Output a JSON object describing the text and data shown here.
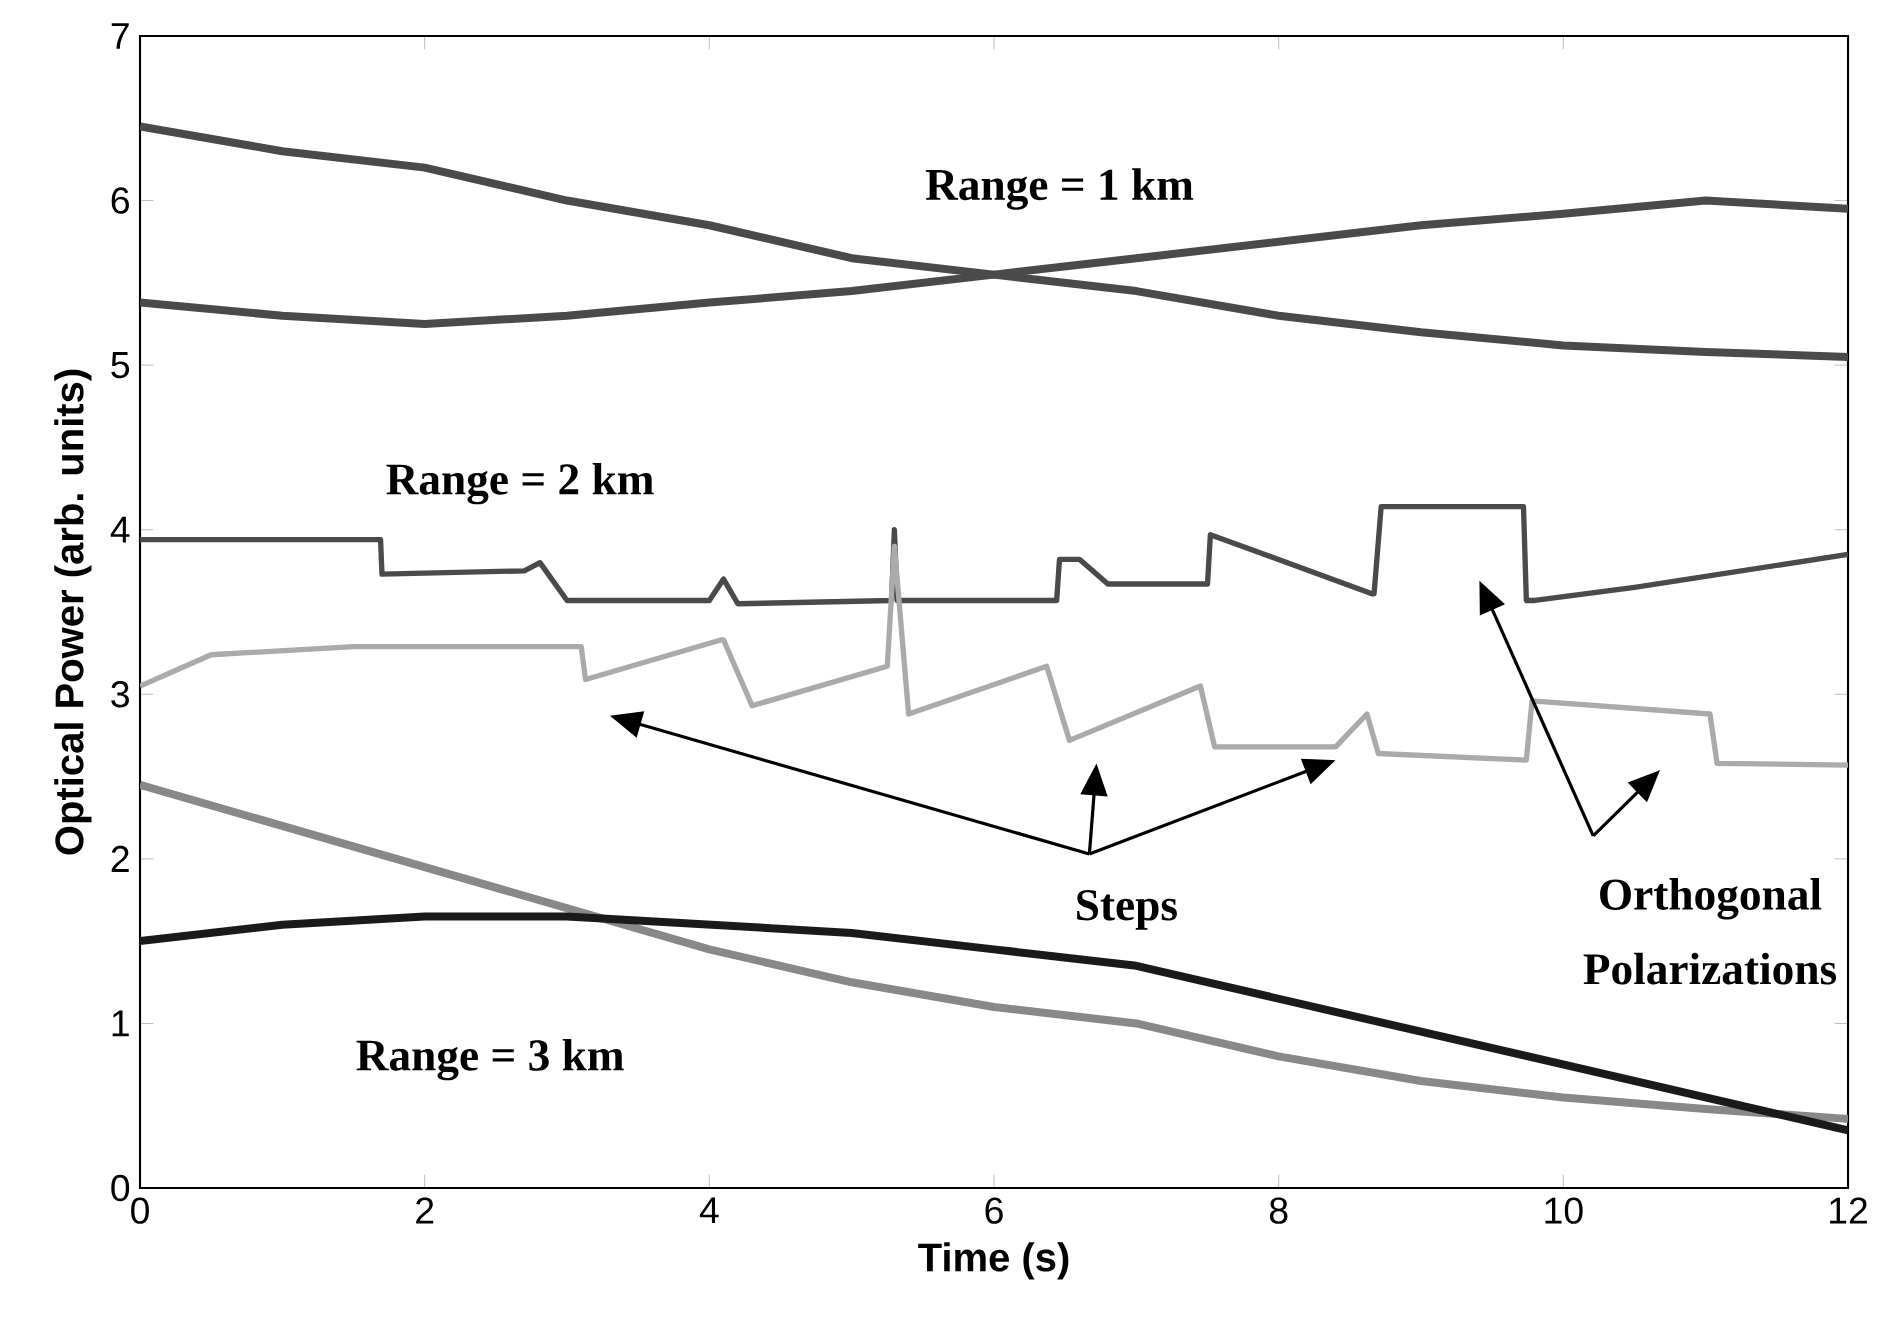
{
  "chart_data": {
    "type": "line",
    "xlabel": "Time (s)",
    "ylabel": "Optical Power (arb. units)",
    "xlim": [
      0,
      12
    ],
    "ylim": [
      0,
      7
    ],
    "xticks": [
      0,
      2,
      4,
      6,
      8,
      10,
      12
    ],
    "yticks": [
      0,
      1,
      2,
      3,
      4,
      5,
      6,
      7
    ],
    "annotations": [
      "Range = 1 km",
      "Range = 2 km",
      "Range = 3 km",
      "Steps",
      "Orthogonal Polarizations"
    ],
    "series": [
      {
        "color": "#4a4a4a",
        "x": [
          0,
          1,
          2,
          3,
          4,
          5,
          6,
          7,
          8,
          9,
          10,
          11,
          12
        ],
        "values": [
          6.45,
          6.3,
          6.2,
          6.0,
          5.85,
          5.65,
          5.55,
          5.45,
          5.3,
          5.2,
          5.12,
          5.08,
          5.05
        ]
      },
      {
        "color": "#4a4a4a",
        "x": [
          0,
          1,
          2,
          3,
          4,
          5,
          6,
          7,
          8,
          9,
          10,
          11,
          12
        ],
        "values": [
          5.38,
          5.3,
          5.25,
          5.3,
          5.38,
          5.45,
          5.55,
          5.65,
          5.75,
          5.85,
          5.92,
          6.0,
          5.95
        ]
      },
      {
        "color": "#4a4a4a",
        "x": [
          0,
          1.69,
          1.7,
          2.7,
          2.81,
          3.0,
          4.0,
          4.1,
          4.2,
          5.28,
          5.3,
          5.32,
          6.44,
          6.46,
          6.6,
          6.8,
          7.5,
          7.52,
          8.66,
          8.67,
          8.72,
          9.72,
          9.74,
          9.8,
          10.5,
          12
        ],
        "values": [
          3.94,
          3.94,
          3.73,
          3.75,
          3.8,
          3.57,
          3.57,
          3.7,
          3.55,
          3.57,
          4.0,
          3.57,
          3.57,
          3.82,
          3.82,
          3.67,
          3.67,
          3.97,
          3.61,
          3.61,
          4.14,
          4.14,
          3.57,
          3.57,
          3.65,
          3.85
        ]
      },
      {
        "color": "#aaaaaa",
        "x": [
          0,
          0.5,
          1.5,
          3.1,
          3.13,
          4.08,
          4.1,
          4.3,
          5.25,
          5.3,
          5.4,
          6.37,
          6.53,
          7.45,
          7.55,
          8.4,
          8.62,
          8.7,
          9.74,
          9.78,
          11.03,
          11.08,
          12
        ],
        "values": [
          3.05,
          3.24,
          3.29,
          3.29,
          3.09,
          3.33,
          3.33,
          2.93,
          3.17,
          3.9,
          2.88,
          3.17,
          2.72,
          3.05,
          2.68,
          2.68,
          2.88,
          2.64,
          2.6,
          2.96,
          2.88,
          2.58,
          2.57
        ]
      },
      {
        "color": "#888888",
        "x": [
          0,
          1,
          2,
          3,
          4,
          5,
          6,
          7,
          8,
          9,
          10,
          11,
          12
        ],
        "values": [
          2.45,
          2.2,
          1.95,
          1.7,
          1.45,
          1.25,
          1.1,
          1.0,
          0.8,
          0.65,
          0.55,
          0.48,
          0.42
        ]
      },
      {
        "color": "#1a1a1a",
        "x": [
          0,
          1,
          2,
          3,
          4,
          5,
          6,
          7,
          8,
          9,
          10,
          11,
          12
        ],
        "values": [
          1.5,
          1.6,
          1.65,
          1.65,
          1.6,
          1.55,
          1.45,
          1.35,
          1.15,
          0.95,
          0.75,
          0.55,
          0.35
        ]
      }
    ]
  }
}
